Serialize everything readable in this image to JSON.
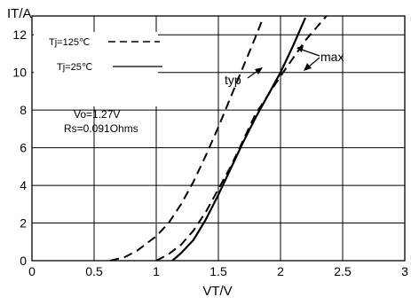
{
  "chart_data": {
    "type": "line",
    "xlabel": "VT/V",
    "ylabel": "IT/A",
    "xlim": [
      0,
      3
    ],
    "ylim": [
      0,
      13
    ],
    "x_ticks": [
      "0",
      "0.5",
      "1",
      "1.5",
      "2",
      "2.5",
      "3"
    ],
    "y_ticks": [
      "0",
      "2",
      "4",
      "6",
      "8",
      "10",
      "12"
    ],
    "grid": true,
    "legend": {
      "placement": "top-left",
      "entries": [
        "Tj=125℃",
        "Tj=25℃"
      ]
    },
    "annotations": {
      "params": [
        "Vo=1.27V",
        "Rs=0.091Ohms"
      ],
      "typ": "typ",
      "max": "max"
    },
    "series": [
      {
        "style": "dashed",
        "values_xy": [
          [
            0.63,
            0
          ],
          [
            0.75,
            0.2
          ],
          [
            0.85,
            0.55
          ],
          [
            1.0,
            1.3
          ],
          [
            1.1,
            2.0
          ],
          [
            1.2,
            3.0
          ],
          [
            1.3,
            4.2
          ],
          [
            1.4,
            5.6
          ],
          [
            1.5,
            7.1
          ],
          [
            1.6,
            8.7
          ],
          [
            1.7,
            10.3
          ],
          [
            1.8,
            11.9
          ],
          [
            1.86,
            12.9
          ]
        ]
      },
      {
        "style": "dashed",
        "values_xy": [
          [
            1.0,
            0
          ],
          [
            1.1,
            0.35
          ],
          [
            1.2,
            0.85
          ],
          [
            1.3,
            1.6
          ],
          [
            1.4,
            2.6
          ],
          [
            1.5,
            3.8
          ],
          [
            1.6,
            5.0
          ],
          [
            1.7,
            6.4
          ],
          [
            1.8,
            7.8
          ],
          [
            2.0,
            9.8
          ],
          [
            2.2,
            11.7
          ],
          [
            2.37,
            13.0
          ]
        ]
      },
      {
        "style": "solid",
        "values_xy": [
          [
            1.13,
            0
          ],
          [
            1.2,
            0.4
          ],
          [
            1.3,
            1.1
          ],
          [
            1.4,
            2.2
          ],
          [
            1.5,
            3.5
          ],
          [
            1.6,
            4.9
          ],
          [
            1.7,
            6.3
          ],
          [
            1.8,
            7.6
          ],
          [
            1.9,
            8.8
          ],
          [
            2.0,
            10.0
          ],
          [
            2.1,
            11.4
          ],
          [
            2.2,
            12.9
          ]
        ]
      }
    ],
    "colors": {
      "line": "#000000",
      "grid": "#000000"
    }
  }
}
